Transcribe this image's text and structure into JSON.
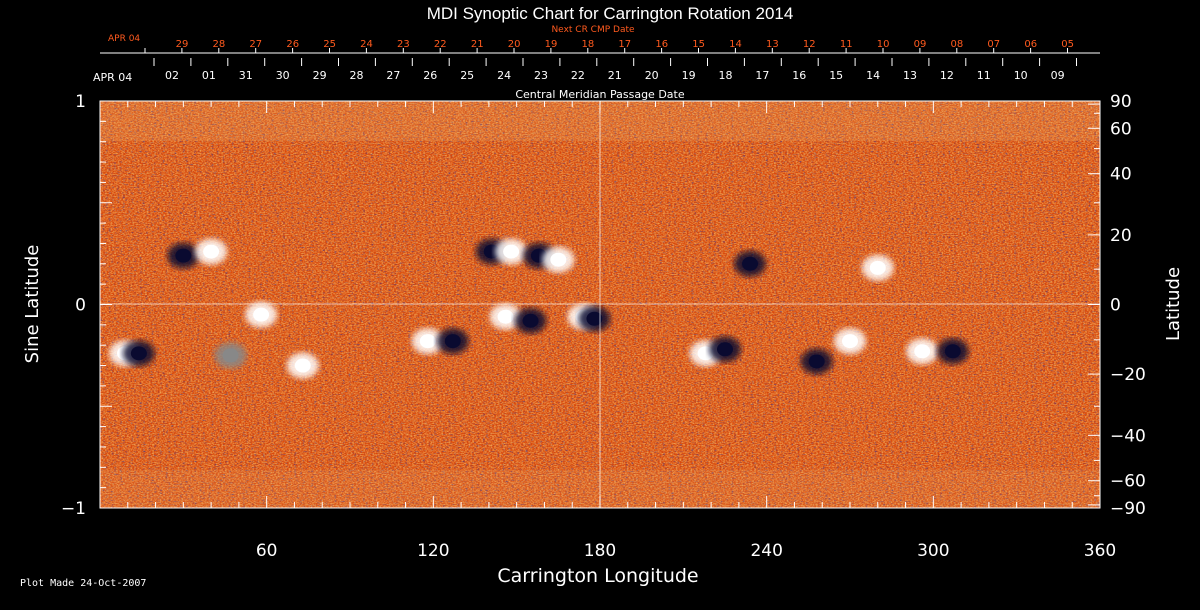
{
  "chart_data": {
    "type": "heatmap",
    "title": "MDI Synoptic Chart for Carrington Rotation 2014",
    "top_axis_label": "Next CR CMP Date",
    "top_axis_start_label": "APR 04",
    "top_axis_ticks": [
      "29",
      "28",
      "27",
      "26",
      "25",
      "24",
      "23",
      "22",
      "21",
      "20",
      "19",
      "18",
      "17",
      "16",
      "15",
      "14",
      "13",
      "12",
      "11",
      "10",
      "09",
      "08",
      "07",
      "06",
      "05"
    ],
    "cmp_axis_label": "Central Meridian Passage Date",
    "cmp_axis_start_label": "APR 04",
    "cmp_axis_ticks": [
      "02",
      "01",
      "31",
      "30",
      "29",
      "28",
      "27",
      "26",
      "25",
      "24",
      "23",
      "22",
      "21",
      "20",
      "19",
      "18",
      "17",
      "16",
      "15",
      "14",
      "13",
      "12",
      "11",
      "10",
      "09"
    ],
    "xlabel": "Carrington Longitude",
    "x_ticks": [
      60,
      120,
      180,
      240,
      300,
      360
    ],
    "xlim": [
      0,
      360
    ],
    "ylabel_left": "Sine Latitude",
    "y_left_ticks": [
      "1",
      "0",
      "−1"
    ],
    "ylim_sine": [
      -1,
      1
    ],
    "ylabel_right": "Latitude",
    "y_right_ticks": [
      90,
      60,
      40,
      20,
      0,
      -20,
      -40,
      -60,
      -90
    ],
    "colors": {
      "background_field": "#d8480c",
      "positive_polarity": "#ffffff",
      "negative_polarity": "#0a0a30",
      "top_axis_text": "#ff5a1e",
      "axis_text": "#ffffff"
    },
    "active_regions": [
      {
        "lon": 30,
        "sinlat": 0.24,
        "polarity": "negative"
      },
      {
        "lon": 40,
        "sinlat": 0.26,
        "polarity": "positive"
      },
      {
        "lon": 58,
        "sinlat": -0.05,
        "polarity": "positive"
      },
      {
        "lon": 9,
        "sinlat": -0.24,
        "polarity": "positive"
      },
      {
        "lon": 14,
        "sinlat": -0.24,
        "polarity": "negative"
      },
      {
        "lon": 47,
        "sinlat": -0.25,
        "polarity": "mixed"
      },
      {
        "lon": 73,
        "sinlat": -0.3,
        "polarity": "positive"
      },
      {
        "lon": 118,
        "sinlat": -0.18,
        "polarity": "positive"
      },
      {
        "lon": 127,
        "sinlat": -0.18,
        "polarity": "negative"
      },
      {
        "lon": 141,
        "sinlat": 0.26,
        "polarity": "negative"
      },
      {
        "lon": 148,
        "sinlat": 0.26,
        "polarity": "positive"
      },
      {
        "lon": 158,
        "sinlat": 0.24,
        "polarity": "negative"
      },
      {
        "lon": 165,
        "sinlat": 0.22,
        "polarity": "positive"
      },
      {
        "lon": 146,
        "sinlat": -0.06,
        "polarity": "positive"
      },
      {
        "lon": 155,
        "sinlat": -0.08,
        "polarity": "negative"
      },
      {
        "lon": 174,
        "sinlat": -0.06,
        "polarity": "positive"
      },
      {
        "lon": 178,
        "sinlat": -0.07,
        "polarity": "negative"
      },
      {
        "lon": 218,
        "sinlat": -0.24,
        "polarity": "positive"
      },
      {
        "lon": 225,
        "sinlat": -0.22,
        "polarity": "negative"
      },
      {
        "lon": 296,
        "sinlat": -0.23,
        "polarity": "positive"
      },
      {
        "lon": 307,
        "sinlat": -0.23,
        "polarity": "negative"
      },
      {
        "lon": 270,
        "sinlat": -0.18,
        "polarity": "positive"
      },
      {
        "lon": 258,
        "sinlat": -0.28,
        "polarity": "negative"
      },
      {
        "lon": 280,
        "sinlat": 0.18,
        "polarity": "positive"
      },
      {
        "lon": 234,
        "sinlat": 0.2,
        "polarity": "negative"
      }
    ]
  },
  "footer": {
    "plot_made": "Plot Made 24-Oct-2007"
  }
}
